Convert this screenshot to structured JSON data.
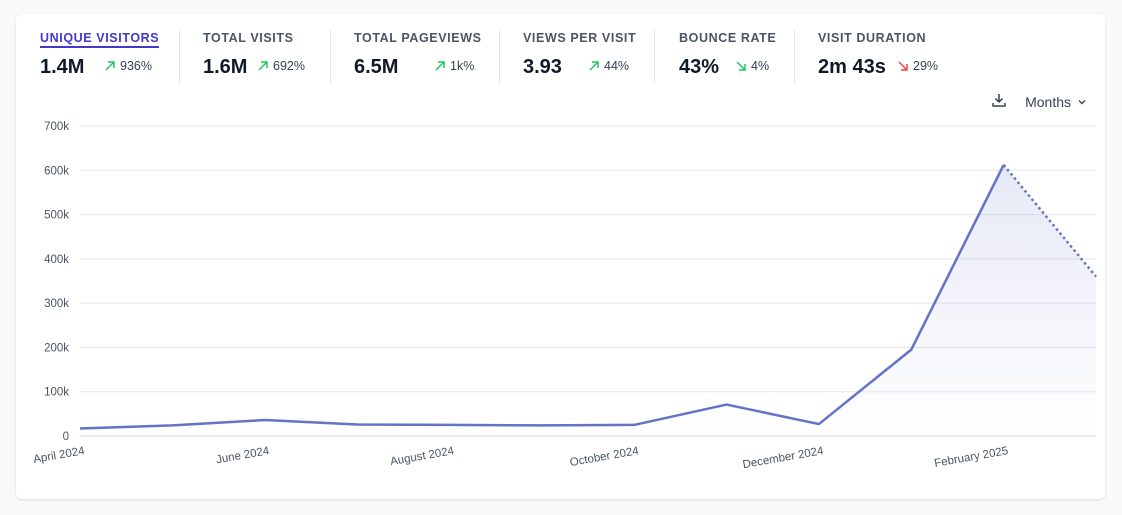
{
  "metrics": [
    {
      "label": "UNIQUE VISITORS",
      "value": "1.4M",
      "change": "936%",
      "direction": "up",
      "active": true
    },
    {
      "label": "TOTAL VISITS",
      "value": "1.6M",
      "change": "692%",
      "direction": "up",
      "active": false
    },
    {
      "label": "TOTAL PAGEVIEWS",
      "value": "6.5M",
      "change": "1k%",
      "direction": "up",
      "active": false
    },
    {
      "label": "VIEWS PER VISIT",
      "value": "3.93",
      "change": "44%",
      "direction": "up",
      "active": false
    },
    {
      "label": "BOUNCE RATE",
      "value": "43%",
      "change": "4%",
      "direction": "down-good",
      "active": false
    },
    {
      "label": "VISIT DURATION",
      "value": "2m 43s",
      "change": "29%",
      "direction": "down-bad",
      "active": false
    }
  ],
  "toolbar": {
    "download_icon": "download-icon",
    "period_label": "Months"
  },
  "colors": {
    "accent": "#4338ca",
    "line": "#6373c8",
    "up": "#22c55e",
    "down_good": "#22c55e",
    "down_bad": "#ef4444"
  },
  "chart_data": {
    "type": "line",
    "y_ticks": [
      "0",
      "100k",
      "200k",
      "300k",
      "400k",
      "500k",
      "600k",
      "700k"
    ],
    "ylim": [
      0,
      700000
    ],
    "x_tick_labels": [
      "April 2024",
      "June 2024",
      "August 2024",
      "October 2024",
      "December 2024",
      "February 2025"
    ],
    "categories": [
      "2024-04",
      "2024-05",
      "2024-06",
      "2024-07",
      "2024-08",
      "2024-09",
      "2024-10",
      "2024-11",
      "2024-12",
      "2025-01",
      "2025-02",
      "2025-03"
    ],
    "series": [
      {
        "values": [
          17000,
          24000,
          36000,
          26000,
          25000,
          24000,
          25000,
          71000,
          27000,
          195000,
          612000,
          360000
        ]
      }
    ],
    "partial_last_point": true,
    "grid": true
  }
}
